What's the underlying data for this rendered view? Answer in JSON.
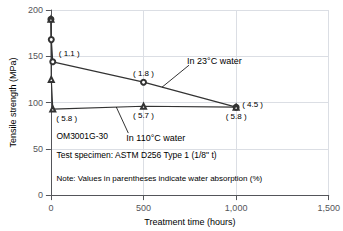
{
  "chart_data": {
    "type": "line",
    "xlabel": "Treatment time (hours)",
    "ylabel": "Tensile strength (MPa)",
    "xlim": [
      0,
      1500
    ],
    "ylim": [
      0,
      200
    ],
    "xticks": [
      0,
      500,
      {
        "value": 1000,
        "label": "1,000"
      },
      {
        "value": 1500,
        "label": "1,500"
      }
    ],
    "yticks": [
      0,
      50,
      100,
      150,
      200
    ],
    "grid": true,
    "series": [
      {
        "name": "In 23°C water",
        "color": "#333333",
        "marker": "circle",
        "x": [
          0,
          2,
          10,
          500,
          1000
        ],
        "values": [
          190,
          168,
          144,
          122,
          95
        ],
        "annotations": [
          {
            "x": 10,
            "y": 144,
            "text": "( 1.1 )"
          },
          {
            "x": 500,
            "y": 122,
            "text": "( 1.8 )"
          },
          {
            "x": 1000,
            "y": 95,
            "text": "( 4.5 )"
          }
        ]
      },
      {
        "name": "In 110°C water",
        "color": "#333333",
        "marker": "triangle",
        "x": [
          0,
          2,
          10,
          500,
          1000
        ],
        "values": [
          190,
          125,
          93,
          96,
          95
        ],
        "annotations": [
          {
            "x": 10,
            "y": 93,
            "text": "( 5.8 )"
          },
          {
            "x": 500,
            "y": 96,
            "text": "( 5.7 )"
          },
          {
            "x": 1000,
            "y": 95,
            "text": "( 5.8 )"
          }
        ]
      }
    ],
    "annotations": [
      "OM3001G-30",
      "Test specimen: ASTM D256 Type 1 (1/8\" t)",
      "Note: Values in parentheses indicate water absorption (%)"
    ]
  }
}
